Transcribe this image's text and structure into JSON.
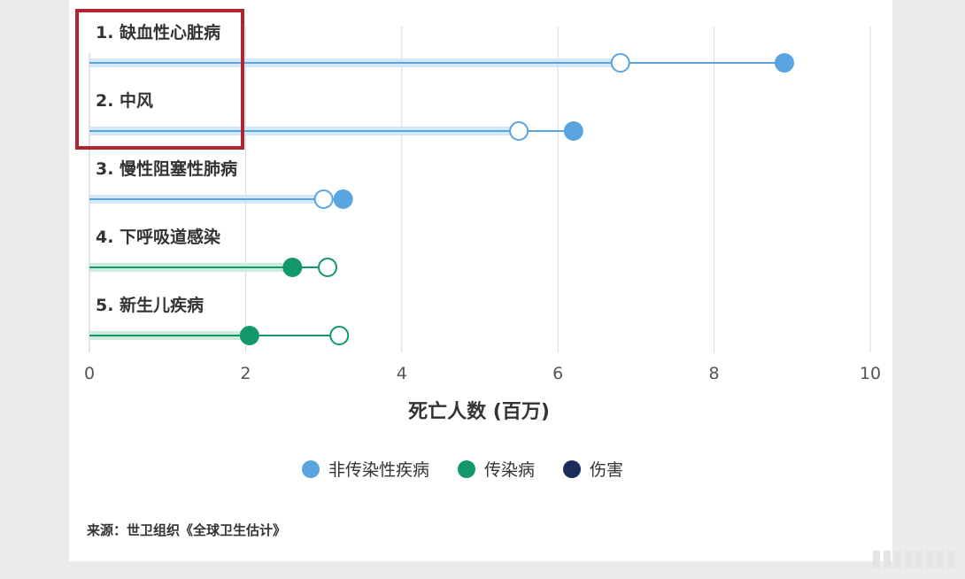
{
  "chart_data": {
    "type": "dumbbell",
    "xlabel": "死亡人数 (百万)",
    "xlim": [
      0,
      10
    ],
    "xticks": [
      0,
      2,
      4,
      6,
      8,
      10
    ],
    "grid": "vertical",
    "categories": [
      "1. 缺血性心脏病",
      "2. 中风",
      "3. 慢性阻塞性肺病",
      "4. 下呼吸道感染",
      "5. 新生儿疾病"
    ],
    "series": [
      {
        "values": [
          6.8,
          5.5,
          3.0,
          3.05,
          3.2
        ],
        "marker": "hollow"
      },
      {
        "values": [
          8.9,
          6.2,
          3.25,
          2.6,
          2.05
        ],
        "marker": "filled"
      }
    ],
    "category_group": [
      "非传染性疾病",
      "非传染性疾病",
      "非传染性疾病",
      "传染病",
      "传染病"
    ],
    "legend": [
      {
        "label": "非传染性疾病",
        "color": "#5aa5df"
      },
      {
        "label": "传染病",
        "color": "#13986a"
      },
      {
        "label": "伤害",
        "color": "#1b2b5b"
      }
    ],
    "legend_position": "bottom",
    "source": "来源：世卫组织《全球卫生估计》"
  }
}
